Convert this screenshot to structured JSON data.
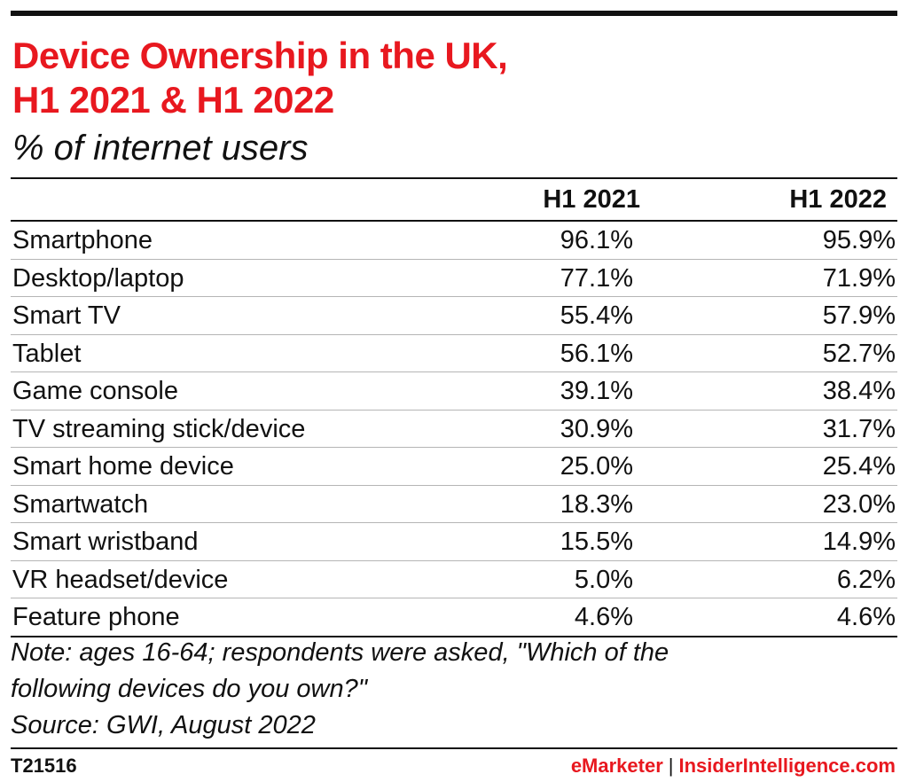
{
  "title_line1": "Device Ownership in the UK,",
  "title_line2": "H1 2021 & H1 2022",
  "subtitle": "% of internet users",
  "colors": {
    "title": "#e8181f",
    "rule": "#111111",
    "row_divider": "#b5b5b5",
    "brand": "#e8181f"
  },
  "chart_data": {
    "type": "table",
    "columns": [
      "H1 2021",
      "H1 2022"
    ],
    "rows": [
      {
        "label": "Smartphone",
        "values": [
          "96.1%",
          "95.9%"
        ]
      },
      {
        "label": "Desktop/laptop",
        "values": [
          "77.1%",
          "71.9%"
        ]
      },
      {
        "label": "Smart TV",
        "values": [
          "55.4%",
          "57.9%"
        ]
      },
      {
        "label": "Tablet",
        "values": [
          "56.1%",
          "52.7%"
        ]
      },
      {
        "label": "Game console",
        "values": [
          "39.1%",
          "38.4%"
        ]
      },
      {
        "label": "TV streaming stick/device",
        "values": [
          "30.9%",
          "31.7%"
        ]
      },
      {
        "label": "Smart home device",
        "values": [
          "25.0%",
          "25.4%"
        ]
      },
      {
        "label": "Smartwatch",
        "values": [
          "18.3%",
          "23.0%"
        ]
      },
      {
        "label": "Smart wristband",
        "values": [
          "15.5%",
          "14.9%"
        ]
      },
      {
        "label": "VR headset/device",
        "values": [
          "5.0%",
          "6.2%"
        ]
      },
      {
        "label": "Feature phone",
        "values": [
          "4.6%",
          "4.6%"
        ]
      }
    ]
  },
  "note_line1": "Note: ages 16-64; respondents were asked, \"Which of the",
  "note_line2": "following devices do you own?\"",
  "source": "Source: GWI, August 2022",
  "chart_id": "T21516",
  "brand_left": "eMarketer",
  "brand_separator": "|",
  "brand_right": "InsiderIntelligence.com"
}
